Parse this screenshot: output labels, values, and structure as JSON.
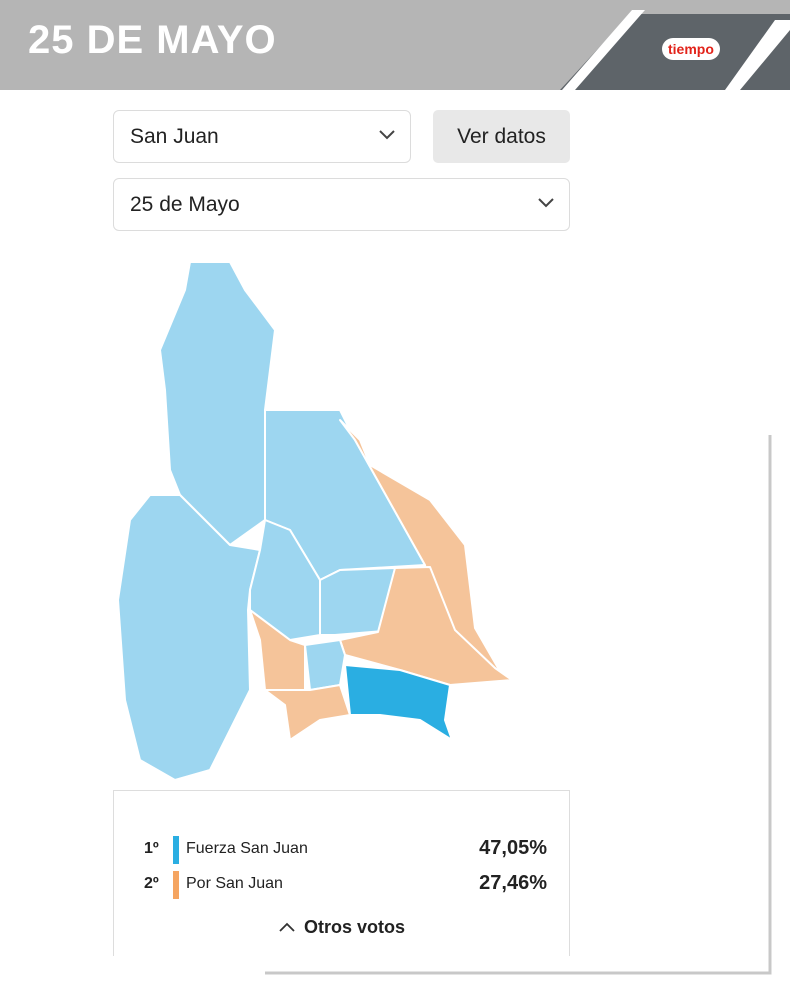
{
  "header": {
    "title": "25 DE MAYO",
    "logo": "tiempo"
  },
  "controls": {
    "province": "San Juan",
    "button": "Ver datos",
    "department": "25 de Mayo"
  },
  "results": {
    "rows": [
      {
        "rank": "1º",
        "party": "Fuerza San Juan",
        "percent": "47,05%"
      },
      {
        "rank": "2º",
        "party": "Por San Juan",
        "percent": "27,46%"
      }
    ],
    "more": "Otros votos"
  }
}
